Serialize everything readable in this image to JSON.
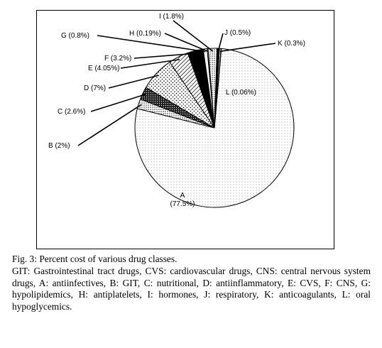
{
  "chart_data": {
    "type": "pie",
    "slices": [
      {
        "key": "A",
        "label": "A\n(77.5%)",
        "value": 77.5,
        "pattern": "dots-light"
      },
      {
        "key": "B",
        "label": "B (2%)",
        "value": 2.0,
        "pattern": "dots-med"
      },
      {
        "key": "C",
        "label": "C (2.6%)",
        "value": 2.6,
        "pattern": "dark-dots"
      },
      {
        "key": "D",
        "label": "D (7%)",
        "value": 7.0,
        "pattern": "dots-sparse"
      },
      {
        "key": "E",
        "label": "E (4.05%)",
        "value": 4.05,
        "pattern": "hatch"
      },
      {
        "key": "F",
        "label": "F (3.2%)",
        "value": 3.2,
        "pattern": "black"
      },
      {
        "key": "G",
        "label": "G (0.8%)",
        "value": 0.8,
        "pattern": "white"
      },
      {
        "key": "H",
        "label": "H (0.19%)",
        "value": 0.19,
        "pattern": "white"
      },
      {
        "key": "I",
        "label": "I (1.8%)",
        "value": 1.8,
        "pattern": "dots-med"
      },
      {
        "key": "J",
        "label": "J (0.5%)",
        "value": 0.5,
        "pattern": "black"
      },
      {
        "key": "K",
        "label": "K (0.3%)",
        "value": 0.3,
        "pattern": "white"
      },
      {
        "key": "L",
        "label": "L (0.06%)",
        "value": 0.06,
        "pattern": "white"
      }
    ]
  },
  "caption": {
    "title": "Fig. 3: Percent cost of various drug classes.",
    "description": "GIT: Gastrointestinal tract drugs, CVS: cardiovascular drugs, CNS: central nervous system drugs, A: antiinfectives, B: GIT, C: nutritional, D: antiinflammatory, E: CVS, F: CNS, G: hypolipidemics, H: antiplatelets, I: hormones, J: respiratory, K: anticoagulants, L: oral hypoglycemics."
  }
}
